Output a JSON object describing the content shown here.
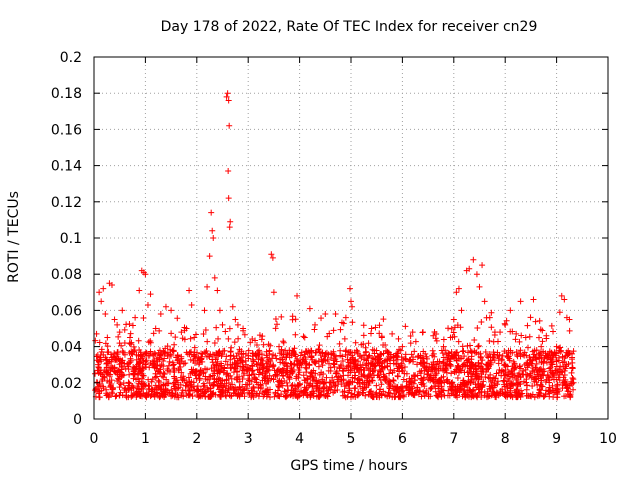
{
  "chart_data": {
    "type": "scatter",
    "title": "Day 178 of 2022, Rate Of TEC Index for receiver cn29",
    "xlabel": "GPS time / hours",
    "ylabel": "ROTI / TECUs",
    "xlim": [
      0,
      10
    ],
    "ylim": [
      0,
      0.2
    ],
    "x_ticks": [
      0,
      1,
      2,
      3,
      4,
      5,
      6,
      7,
      8,
      9,
      10
    ],
    "x_tick_labels": [
      "0",
      "1",
      "2",
      "3",
      "4",
      "5",
      "6",
      "7",
      "8",
      "9",
      "10"
    ],
    "y_ticks": [
      0,
      0.02,
      0.04,
      0.06,
      0.08,
      0.1,
      0.12,
      0.14,
      0.16,
      0.18,
      0.2
    ],
    "y_tick_labels": [
      "0",
      "0.02",
      "0.04",
      "0.06",
      "0.08",
      "0.1",
      "0.12",
      "0.14",
      "0.16",
      "0.18",
      "0.2"
    ],
    "grid": true,
    "marker": "plus",
    "color": "#ff0000",
    "series": [
      {
        "name": "cn29",
        "points": [
          [
            0.02,
            0.025
          ],
          [
            0.05,
            0.047
          ],
          [
            0.1,
            0.07
          ],
          [
            0.14,
            0.065
          ],
          [
            0.18,
            0.072
          ],
          [
            0.22,
            0.058
          ],
          [
            0.26,
            0.045
          ],
          [
            0.3,
            0.075
          ],
          [
            0.35,
            0.074
          ],
          [
            0.4,
            0.055
          ],
          [
            0.45,
            0.052
          ],
          [
            0.5,
            0.048
          ],
          [
            0.55,
            0.06
          ],
          [
            0.6,
            0.042
          ],
          [
            0.7,
            0.045
          ],
          [
            0.8,
            0.056
          ],
          [
            0.88,
            0.071
          ],
          [
            0.93,
            0.082
          ],
          [
            0.97,
            0.081
          ],
          [
            1.0,
            0.08
          ],
          [
            1.05,
            0.063
          ],
          [
            1.1,
            0.069
          ],
          [
            1.2,
            0.05
          ],
          [
            1.3,
            0.058
          ],
          [
            1.4,
            0.062
          ],
          [
            1.5,
            0.06
          ],
          [
            1.6,
            0.034
          ],
          [
            1.7,
            0.048
          ],
          [
            1.8,
            0.05
          ],
          [
            1.85,
            0.071
          ],
          [
            1.9,
            0.063
          ],
          [
            1.95,
            0.045
          ],
          [
            2.05,
            0.031
          ],
          [
            2.15,
            0.06
          ],
          [
            2.2,
            0.073
          ],
          [
            2.25,
            0.09
          ],
          [
            2.28,
            0.114
          ],
          [
            2.3,
            0.104
          ],
          [
            2.32,
            0.1
          ],
          [
            2.35,
            0.078
          ],
          [
            2.4,
            0.071
          ],
          [
            2.45,
            0.06
          ],
          [
            2.5,
            0.052
          ],
          [
            2.58,
            0.178
          ],
          [
            2.6,
            0.18
          ],
          [
            2.62,
            0.176
          ],
          [
            2.63,
            0.162
          ],
          [
            2.61,
            0.137
          ],
          [
            2.62,
            0.122
          ],
          [
            2.65,
            0.109
          ],
          [
            2.64,
            0.106
          ],
          [
            2.7,
            0.062
          ],
          [
            2.75,
            0.055
          ],
          [
            2.8,
            0.052
          ],
          [
            2.9,
            0.05
          ],
          [
            3.0,
            0.035
          ],
          [
            3.1,
            0.032
          ],
          [
            3.2,
            0.033
          ],
          [
            3.3,
            0.041
          ],
          [
            3.45,
            0.091
          ],
          [
            3.48,
            0.089
          ],
          [
            3.5,
            0.07
          ],
          [
            3.6,
            0.04
          ],
          [
            3.8,
            0.038
          ],
          [
            3.95,
            0.068
          ],
          [
            4.1,
            0.045
          ],
          [
            4.2,
            0.061
          ],
          [
            4.3,
            0.052
          ],
          [
            4.5,
            0.058
          ],
          [
            4.7,
            0.058
          ],
          [
            4.9,
            0.056
          ],
          [
            4.98,
            0.072
          ],
          [
            5.0,
            0.065
          ],
          [
            5.02,
            0.062
          ],
          [
            5.2,
            0.041
          ],
          [
            5.4,
            0.05
          ],
          [
            5.6,
            0.045
          ],
          [
            5.8,
            0.047
          ],
          [
            6.0,
            0.04
          ],
          [
            6.2,
            0.048
          ],
          [
            6.4,
            0.048
          ],
          [
            6.6,
            0.046
          ],
          [
            6.8,
            0.04
          ],
          [
            7.0,
            0.055
          ],
          [
            7.05,
            0.07
          ],
          [
            7.1,
            0.072
          ],
          [
            7.15,
            0.06
          ],
          [
            7.25,
            0.082
          ],
          [
            7.3,
            0.083
          ],
          [
            7.38,
            0.088
          ],
          [
            7.45,
            0.08
          ],
          [
            7.5,
            0.073
          ],
          [
            7.55,
            0.085
          ],
          [
            7.6,
            0.065
          ],
          [
            7.7,
            0.056
          ],
          [
            7.8,
            0.048
          ],
          [
            7.9,
            0.048
          ],
          [
            8.0,
            0.052
          ],
          [
            8.1,
            0.06
          ],
          [
            8.2,
            0.044
          ],
          [
            8.3,
            0.065
          ],
          [
            8.4,
            0.045
          ],
          [
            8.55,
            0.066
          ],
          [
            8.7,
            0.04
          ],
          [
            8.8,
            0.046
          ],
          [
            9.0,
            0.04
          ],
          [
            9.1,
            0.068
          ],
          [
            9.15,
            0.066
          ],
          [
            9.2,
            0.056
          ],
          [
            9.25,
            0.055
          ],
          [
            9.3,
            0.036
          ],
          [
            9.33,
            0.02
          ]
        ],
        "dense_band": {
          "x_range": [
            0.02,
            9.33
          ],
          "typical_low": 0.012,
          "typical_high": 0.038
        }
      }
    ]
  }
}
